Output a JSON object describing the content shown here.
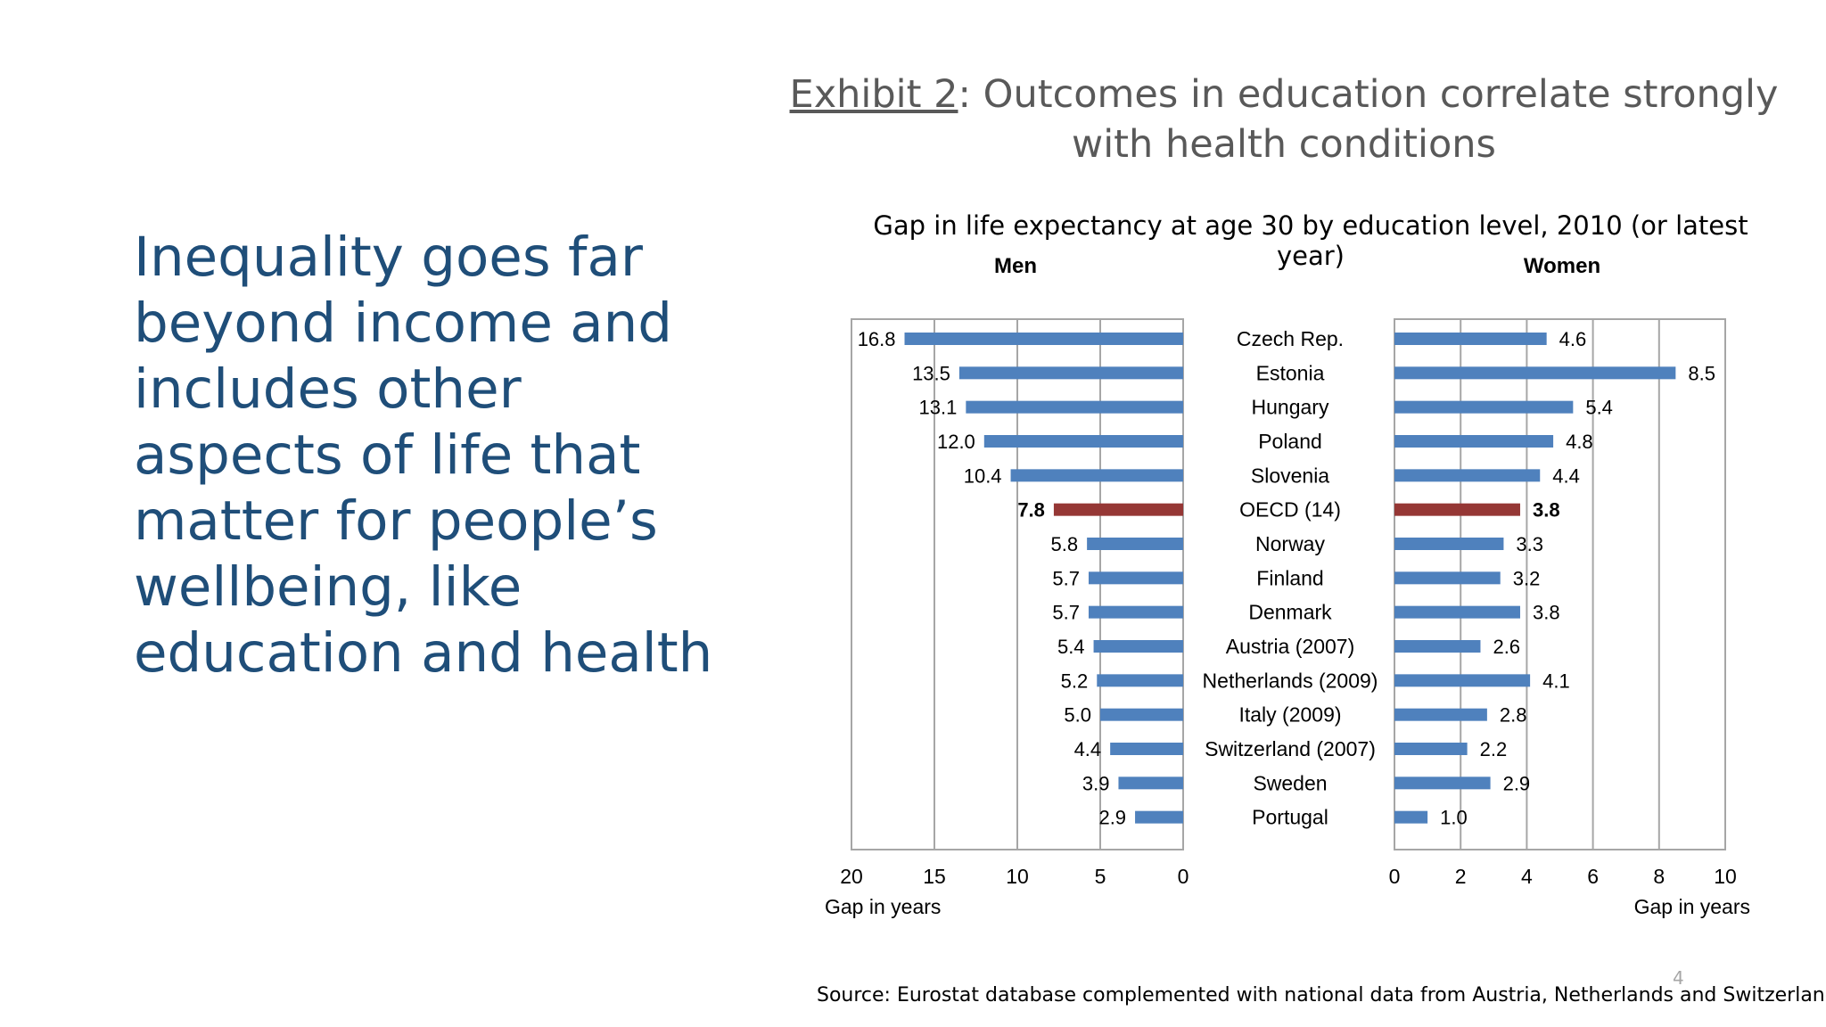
{
  "slide": {
    "body_text": "Inequality goes far beyond income and includes other aspects of life that matter for people’s wellbeing, like education and health",
    "title_link": "Exhibit 2",
    "title_rest": ": Outcomes in education correlate strongly with health conditions",
    "subtitle": "Gap in life expectancy at age 30 by education level, 2010 (or latest year)",
    "source": "Source: Eurostat database complemented with national data from Austria, Netherlands and Switzerland.",
    "page_number": "4"
  },
  "colors": {
    "bar": "#4f81bd",
    "highlight": "#953735",
    "grid": "#a6a6a6",
    "body_text": "#1f4e79"
  },
  "chart_data": {
    "type": "bar",
    "title": "Gap in life expectancy at age 30 by education level, 2010 (or latest year)",
    "categories": [
      "Czech Rep.",
      "Estonia",
      "Hungary",
      "Poland",
      "Slovenia",
      "OECD (14)",
      "Norway",
      "Finland",
      "Denmark",
      "Austria (2007)",
      "Netherlands (2009)",
      "Italy (2009)",
      "Switzerland (2007)",
      "Sweden",
      "Portugal"
    ],
    "highlight_category": "OECD (14)",
    "series": [
      {
        "name": "Men",
        "values": [
          16.8,
          13.5,
          13.1,
          12.0,
          10.4,
          7.8,
          5.8,
          5.7,
          5.7,
          5.4,
          5.2,
          5.0,
          4.4,
          3.9,
          2.9
        ],
        "labels": [
          "16.8",
          "13.5",
          "13.1",
          "12.0",
          "10.4",
          "7.8",
          "5.8",
          "5.7",
          "5.7",
          "5.4",
          "5.2",
          "5.0",
          "4.4",
          "3.9",
          "2.9"
        ],
        "xlim": [
          20,
          0
        ],
        "ticks": [
          "20",
          "15",
          "10",
          "5",
          "0"
        ],
        "xlabel": "Gap in years"
      },
      {
        "name": "Women",
        "values": [
          4.6,
          8.5,
          5.4,
          4.8,
          4.4,
          3.8,
          3.3,
          3.2,
          3.8,
          2.6,
          4.1,
          2.8,
          2.2,
          2.9,
          1.0
        ],
        "labels": [
          "4.6",
          "8.5",
          "5.4",
          "4.8",
          "4.4",
          "3.8",
          "3.3",
          "3.2",
          "3.8",
          "2.6",
          "4.1",
          "2.8",
          "2.2",
          "2.9",
          "1.0"
        ],
        "xlim": [
          0,
          10
        ],
        "ticks": [
          "0",
          "2",
          "4",
          "6",
          "8",
          "10"
        ],
        "xlabel": "Gap in years"
      }
    ]
  }
}
